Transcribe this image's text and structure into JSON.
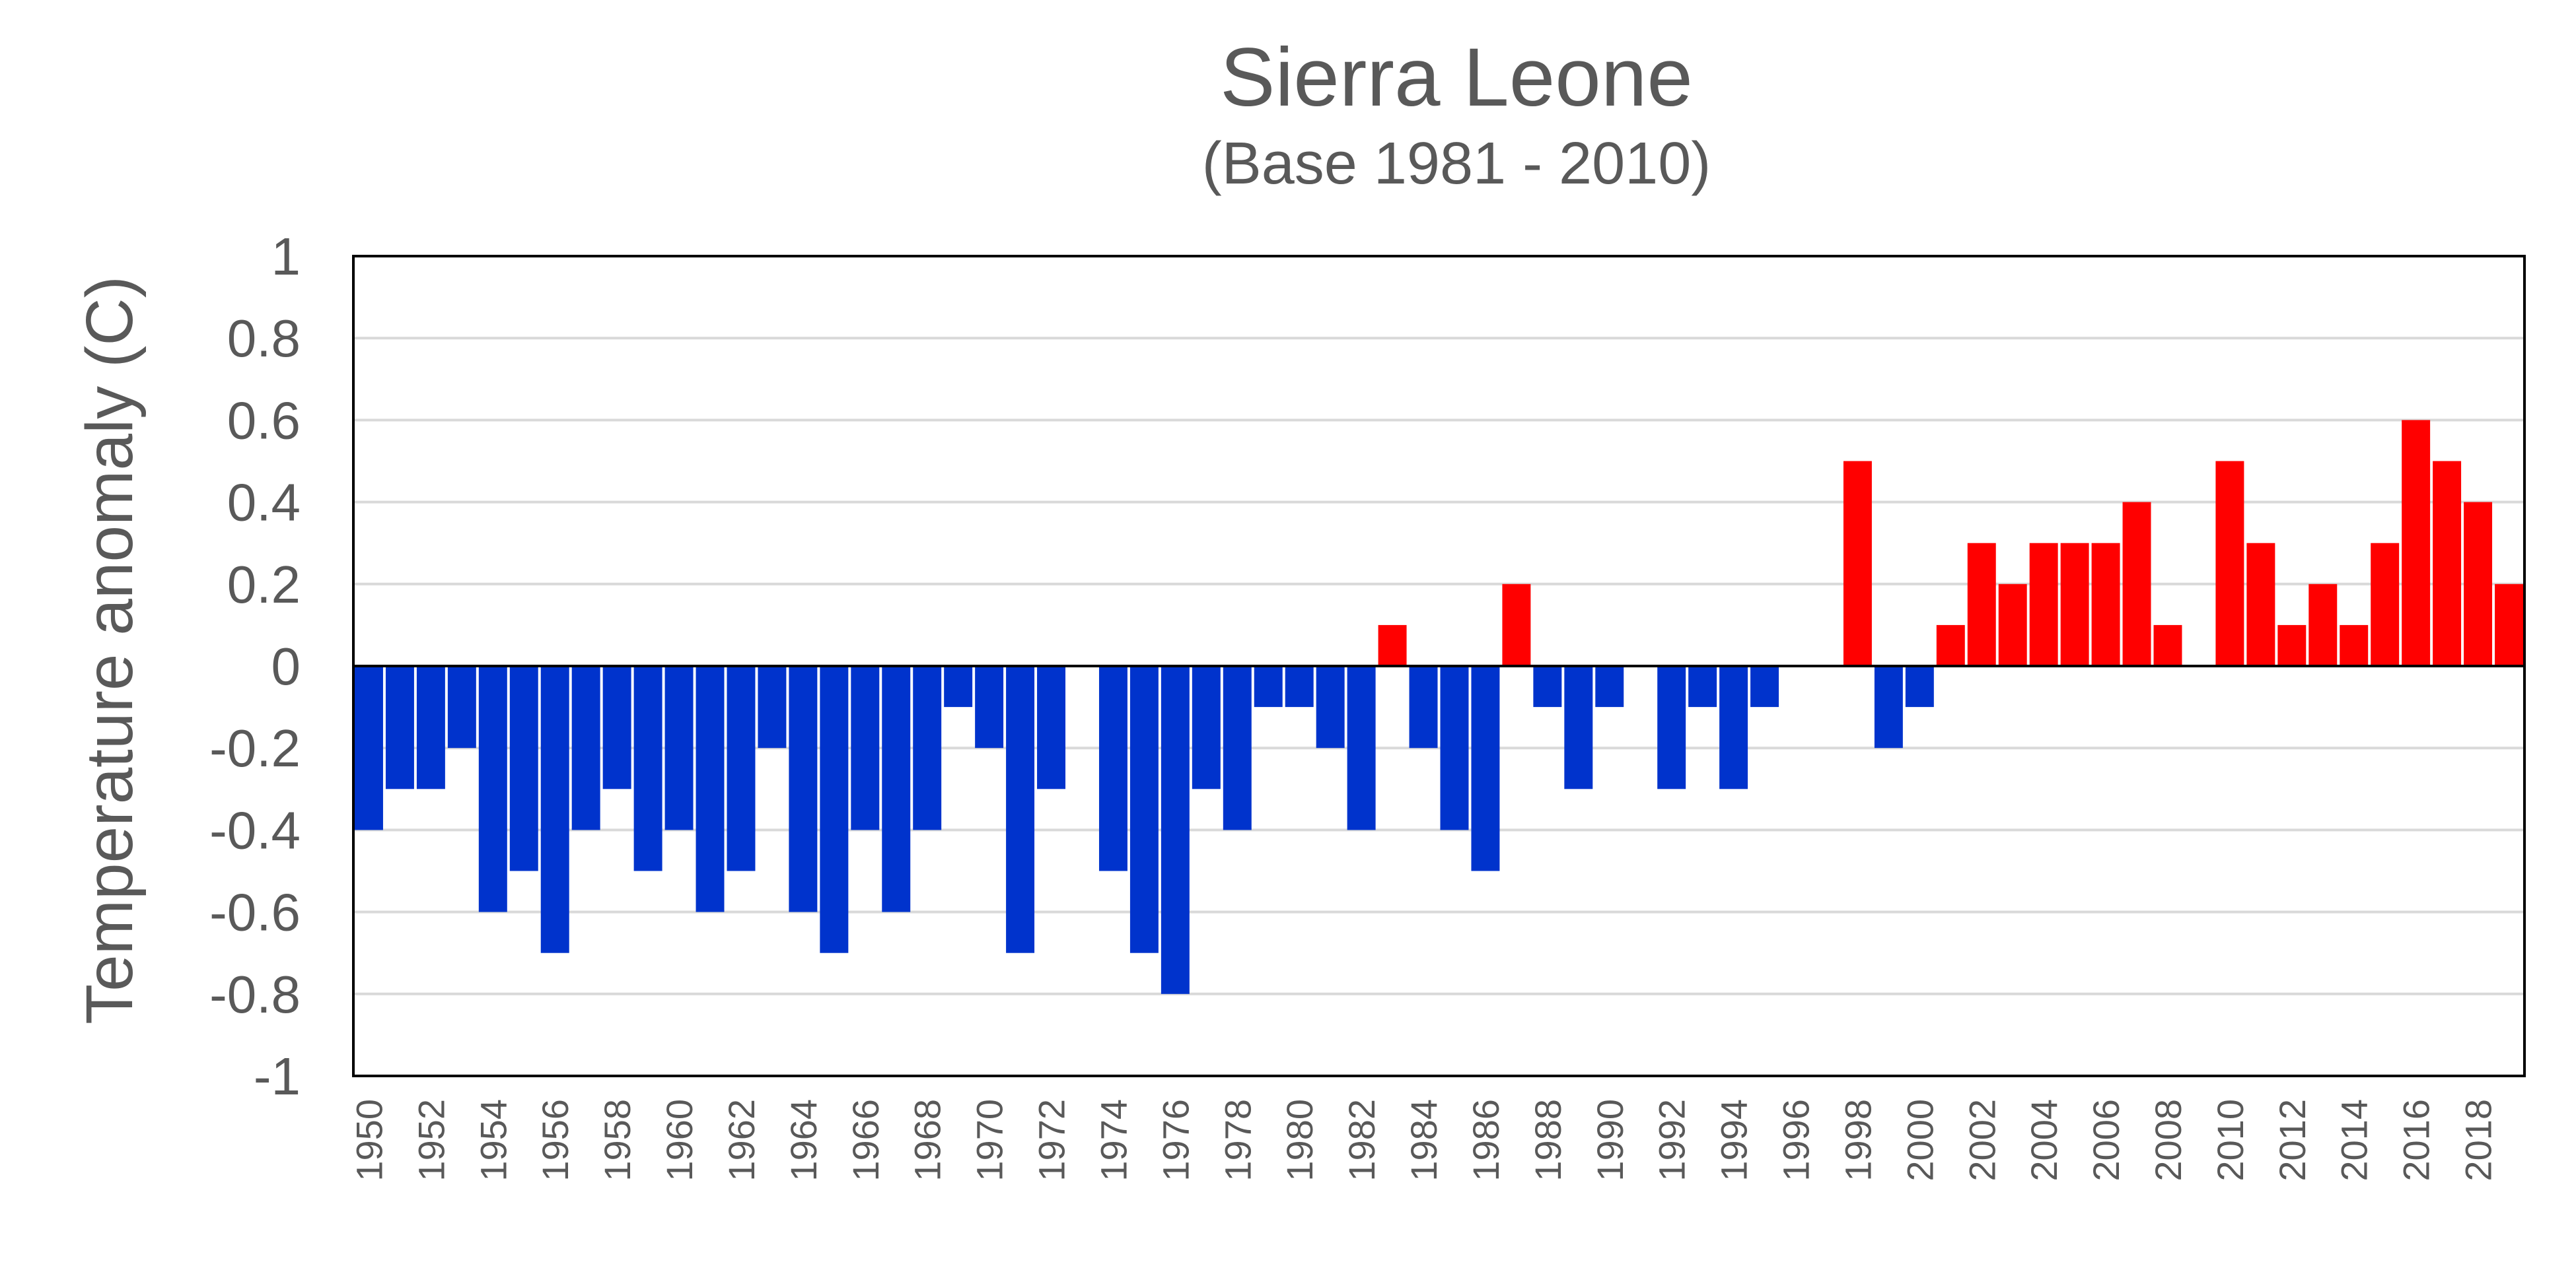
{
  "chart_data": {
    "type": "bar",
    "title": "Sierra Leone",
    "subtitle": "(Base 1981 - 2010)",
    "ylabel": "Temperature anomaly (C)",
    "xlabel": "",
    "ylim": [
      -1,
      1
    ],
    "yticks": [
      "1",
      "0.8",
      "0.6",
      "0.4",
      "0.2",
      "0",
      "-0.2",
      "-0.4",
      "-0.6",
      "-0.8",
      "-1"
    ],
    "ytick_values": [
      1,
      0.8,
      0.6,
      0.4,
      0.2,
      0,
      -0.2,
      -0.4,
      -0.6,
      -0.8,
      -1
    ],
    "grid": true,
    "colors": {
      "positive": "#ff0000",
      "negative": "#0033cc",
      "grid": "#d9d9d9",
      "text": "#595959"
    },
    "xtick_labels": [
      "1950",
      "1952",
      "1954",
      "1956",
      "1958",
      "1960",
      "1962",
      "1964",
      "1966",
      "1968",
      "1970",
      "1972",
      "1974",
      "1976",
      "1978",
      "1980",
      "1982",
      "1984",
      "1986",
      "1988",
      "1990",
      "1992",
      "1994",
      "1996",
      "1998",
      "2000",
      "2002",
      "2004",
      "2006",
      "2008",
      "2010",
      "2012",
      "2014",
      "2016",
      "2018"
    ],
    "categories": [
      1950,
      1951,
      1952,
      1953,
      1954,
      1955,
      1956,
      1957,
      1958,
      1959,
      1960,
      1961,
      1962,
      1963,
      1964,
      1965,
      1966,
      1967,
      1968,
      1969,
      1970,
      1971,
      1972,
      1973,
      1974,
      1975,
      1976,
      1977,
      1978,
      1979,
      1980,
      1981,
      1982,
      1983,
      1984,
      1985,
      1986,
      1987,
      1988,
      1989,
      1990,
      1991,
      1992,
      1993,
      1994,
      1995,
      1996,
      1997,
      1998,
      1999,
      2000,
      2001,
      2002,
      2003,
      2004,
      2005,
      2006,
      2007,
      2008,
      2009,
      2010,
      2011,
      2012,
      2013,
      2014,
      2015,
      2016,
      2017,
      2018,
      2019
    ],
    "values": [
      -0.4,
      -0.3,
      -0.3,
      -0.2,
      -0.6,
      -0.5,
      -0.7,
      -0.4,
      -0.3,
      -0.5,
      -0.4,
      -0.6,
      -0.5,
      -0.2,
      -0.6,
      -0.7,
      -0.4,
      -0.6,
      -0.4,
      -0.1,
      -0.2,
      -0.7,
      -0.3,
      0,
      -0.5,
      -0.7,
      -0.8,
      -0.3,
      -0.4,
      -0.1,
      -0.1,
      -0.2,
      -0.4,
      0.1,
      -0.2,
      -0.4,
      -0.5,
      0.2,
      -0.1,
      -0.3,
      -0.1,
      0,
      -0.3,
      -0.1,
      -0.3,
      -0.1,
      0,
      0,
      0.5,
      -0.2,
      -0.1,
      0.1,
      0.3,
      0.2,
      0.3,
      0.3,
      0.3,
      0.4,
      0.1,
      0,
      0.5,
      0.3,
      0.1,
      0.2,
      0.1,
      0.3,
      0.6,
      0.5,
      0.4,
      0.2
    ]
  }
}
